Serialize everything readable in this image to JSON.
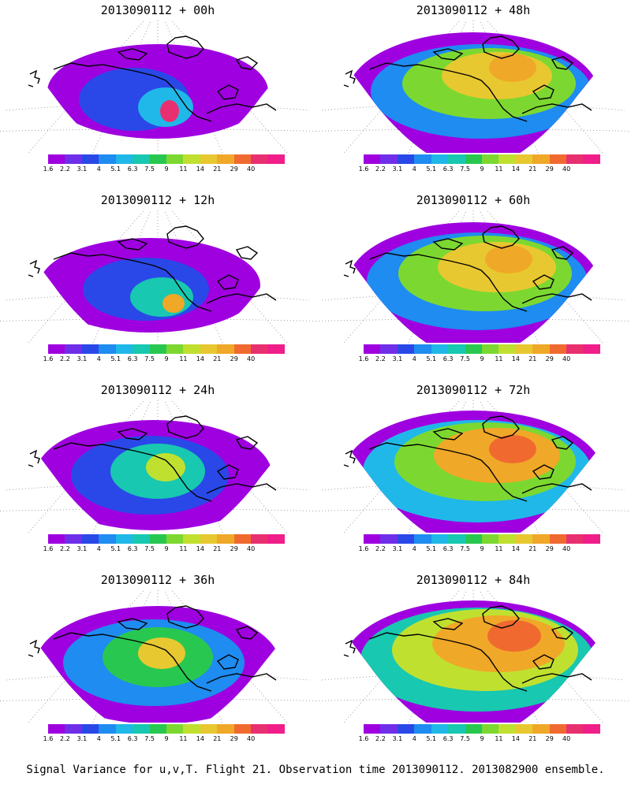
{
  "panels": [
    {
      "title": "2013090112 + 00h",
      "lead": 0
    },
    {
      "title": "2013090112 + 48h",
      "lead": 48
    },
    {
      "title": "2013090112 + 12h",
      "lead": 12
    },
    {
      "title": "2013090112 + 60h",
      "lead": 60
    },
    {
      "title": "2013090112 + 24h",
      "lead": 24
    },
    {
      "title": "2013090112 + 72h",
      "lead": 72
    },
    {
      "title": "2013090112 + 36h",
      "lead": 36
    },
    {
      "title": "2013090112 + 84h",
      "lead": 84
    }
  ],
  "colorbar": {
    "labels": [
      "1.6",
      "2.2",
      "3.1",
      "4",
      "5.1",
      "6.3",
      "7.5",
      "9",
      "11",
      "14",
      "21",
      "29",
      "40"
    ],
    "colors": [
      "#9f00e0",
      "#6f2fe8",
      "#2a48e8",
      "#1e8cf0",
      "#20b8e8",
      "#18c8b0",
      "#28c850",
      "#7cd830",
      "#c0e030",
      "#e8c830",
      "#f0a828",
      "#f06a30",
      "#e83070",
      "#f01e88"
    ]
  },
  "caption": "Signal Variance for u,v,T. Flight 21. Observation time 2013090112. 2013082900 ensemble."
}
